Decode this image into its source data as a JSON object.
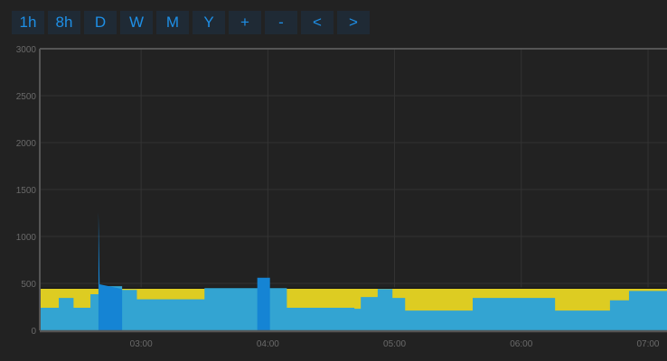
{
  "toolbar": {
    "buttons": [
      "1h",
      "8h",
      "D",
      "W",
      "M",
      "Y",
      "+",
      "-",
      "<",
      ">"
    ]
  },
  "chart_data": {
    "type": "area",
    "ylim": [
      0,
      3000
    ],
    "y_ticks": [
      "0",
      "500",
      "1000",
      "1500",
      "2000",
      "2500",
      "3000"
    ],
    "x_ticks": [
      "03:00",
      "04:00",
      "05:00",
      "06:00",
      "07:00"
    ],
    "xlim": [
      "02:12",
      "07:09"
    ],
    "grid": true,
    "series": [
      {
        "color": "#ddcc22",
        "values": [
          [
            "02:12",
            450
          ],
          [
            "07:09",
            450
          ]
        ]
      },
      {
        "color": "#33a4d2",
        "values": [
          [
            "02:12",
            240
          ],
          [
            "02:21",
            345
          ],
          [
            "02:28",
            240
          ],
          [
            "02:36",
            385
          ],
          [
            "02:40",
            470
          ],
          [
            "02:51",
            430
          ],
          [
            "02:58",
            330
          ],
          [
            "03:30",
            450
          ],
          [
            "04:09",
            240
          ],
          [
            "04:41",
            230
          ],
          [
            "04:44",
            355
          ],
          [
            "04:52",
            440
          ],
          [
            "04:59",
            345
          ],
          [
            "05:05",
            210
          ],
          [
            "05:37",
            345
          ],
          [
            "06:16",
            210
          ],
          [
            "06:42",
            320
          ],
          [
            "06:51",
            420
          ],
          [
            "07:09",
            400
          ]
        ]
      },
      {
        "color": "#1584d4",
        "values": [
          [
            "02:40",
            1260
          ],
          [
            "02:41",
            490
          ],
          [
            "02:51",
            440
          ],
          [
            "03:55",
            560
          ],
          [
            "04:01",
            440
          ]
        ]
      }
    ]
  }
}
